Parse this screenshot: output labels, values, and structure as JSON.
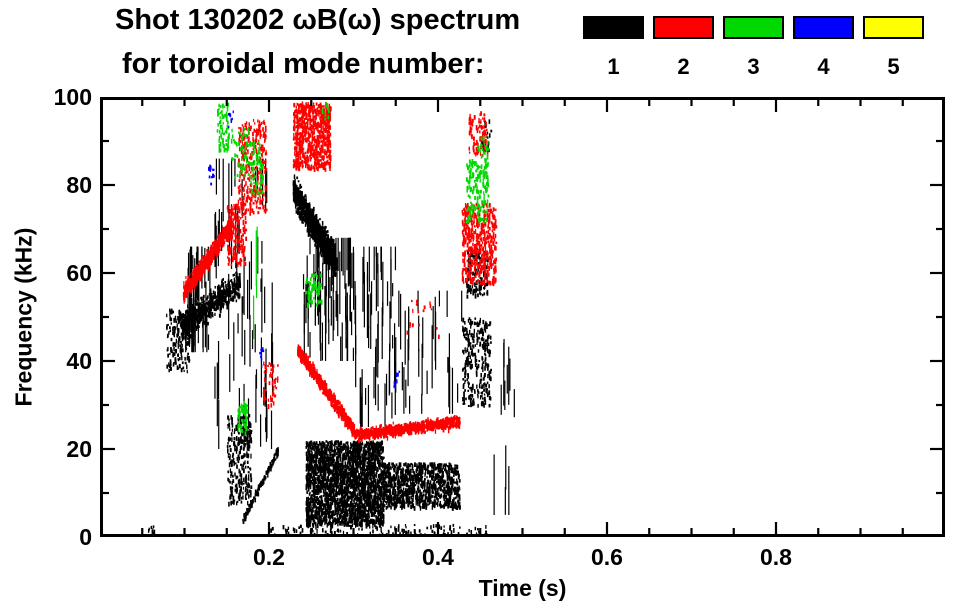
{
  "header": {
    "title": "Shot 130202 ωB(ω) spectrum",
    "subtitle": "for toroidal mode number:"
  },
  "legend": {
    "modes": [
      {
        "label": "1",
        "color": "#000000"
      },
      {
        "label": "2",
        "color": "#ff0000"
      },
      {
        "label": "3",
        "color": "#00d800"
      },
      {
        "label": "4",
        "color": "#0000ff"
      },
      {
        "label": "5",
        "color": "#ffff00"
      }
    ]
  },
  "chart_data": {
    "type": "scatter",
    "title": "Shot 130202 ωB(ω) spectrum for toroidal mode number",
    "xlabel": "Time (s)",
    "ylabel": "Frequency (kHz)",
    "xlim": [
      0,
      1.0
    ],
    "ylim": [
      0,
      100
    ],
    "xticks": [
      {
        "v": 0.2,
        "label": "0.2"
      },
      {
        "v": 0.4,
        "label": "0.4"
      },
      {
        "v": 0.6,
        "label": "0.6"
      },
      {
        "v": 0.8,
        "label": "0.8"
      }
    ],
    "yticks": [
      {
        "v": 0,
        "label": "0"
      },
      {
        "v": 20,
        "label": "20"
      },
      {
        "v": 40,
        "label": "40"
      },
      {
        "v": 60,
        "label": "60"
      },
      {
        "v": 80,
        "label": "80"
      },
      {
        "v": 100,
        "label": "100"
      }
    ],
    "x_minor_step": 0.05,
    "y_minor_step": 10,
    "grid": false,
    "legend_position": "top",
    "series": [
      {
        "name": "1",
        "color": "#000000",
        "clusters": [
          {
            "style": "dots",
            "t0": 0.055,
            "t1": 0.065,
            "f0": 0.5,
            "f1": 3,
            "n": 12
          },
          {
            "style": "dots",
            "t0": 0.078,
            "t1": 0.105,
            "f0": 38,
            "f1": 52,
            "n": 170
          },
          {
            "style": "band",
            "t0": 0.095,
            "t1": 0.165,
            "fa": 48,
            "fb": 58,
            "w": 4.5,
            "n": 560
          },
          {
            "style": "vstreaks",
            "t0": 0.1,
            "t1": 0.135,
            "f0": 42,
            "f1": 66,
            "n": 40
          },
          {
            "style": "vstreaks",
            "t0": 0.135,
            "t1": 0.205,
            "f0": 20,
            "f1": 86,
            "n": 70
          },
          {
            "style": "dots",
            "t0": 0.15,
            "t1": 0.178,
            "f0": 8,
            "f1": 28,
            "n": 280
          },
          {
            "style": "band",
            "t0": 0.168,
            "t1": 0.21,
            "fa": 4,
            "fb": 20,
            "w": 1.2,
            "n": 140
          },
          {
            "style": "band",
            "t0": 0.228,
            "t1": 0.278,
            "fa": 79,
            "fb": 63,
            "w": 5,
            "n": 1050
          },
          {
            "style": "vstreaks",
            "t0": 0.24,
            "t1": 0.3,
            "f0": 40,
            "f1": 68,
            "n": 80
          },
          {
            "style": "dots",
            "t0": 0.243,
            "t1": 0.335,
            "f0": 3,
            "f1": 22,
            "n": 2500
          },
          {
            "style": "dots",
            "t0": 0.335,
            "t1": 0.425,
            "f0": 7,
            "f1": 17,
            "n": 1000
          },
          {
            "style": "vstreaks",
            "t0": 0.3,
            "t1": 0.35,
            "f0": 25,
            "f1": 66,
            "n": 55
          },
          {
            "style": "vstreaks",
            "t0": 0.352,
            "t1": 0.43,
            "f0": 28,
            "f1": 56,
            "n": 30
          },
          {
            "style": "dots",
            "t0": 0.428,
            "t1": 0.462,
            "f0": 30,
            "f1": 50,
            "n": 290
          },
          {
            "style": "dots",
            "t0": 0.433,
            "t1": 0.458,
            "f0": 55,
            "f1": 66,
            "n": 150
          },
          {
            "style": "dots",
            "t0": 0.45,
            "t1": 0.462,
            "f0": 88,
            "f1": 95,
            "n": 25
          },
          {
            "style": "dots",
            "t0": 0.2,
            "t1": 0.46,
            "f0": 0.5,
            "f1": 3,
            "n": 130
          },
          {
            "style": "vstreaks",
            "t0": 0.465,
            "t1": 0.49,
            "f0": 5,
            "f1": 45,
            "n": 12
          }
        ]
      },
      {
        "name": "2",
        "color": "#ff0000",
        "clusters": [
          {
            "style": "band",
            "t0": 0.098,
            "t1": 0.155,
            "fa": 56,
            "fb": 71,
            "w": 3,
            "n": 620
          },
          {
            "style": "dots",
            "t0": 0.15,
            "t1": 0.172,
            "f0": 62,
            "f1": 76,
            "n": 170
          },
          {
            "style": "dots",
            "t0": 0.163,
            "t1": 0.196,
            "f0": 74,
            "f1": 95,
            "n": 320
          },
          {
            "style": "dots",
            "t0": 0.192,
            "t1": 0.21,
            "f0": 30,
            "f1": 40,
            "n": 50
          },
          {
            "style": "dots",
            "t0": 0.228,
            "t1": 0.272,
            "f0": 84,
            "f1": 99,
            "n": 750
          },
          {
            "style": "band",
            "t0": 0.233,
            "t1": 0.3,
            "fa": 43,
            "fb": 24.5,
            "w": 2.2,
            "n": 640
          },
          {
            "style": "band",
            "t0": 0.3,
            "t1": 0.425,
            "fa": 23.5,
            "fb": 26.5,
            "w": 1.8,
            "n": 850
          },
          {
            "style": "dots",
            "t0": 0.362,
            "t1": 0.402,
            "f0": 46,
            "f1": 54,
            "n": 18
          },
          {
            "style": "dots",
            "t0": 0.428,
            "t1": 0.468,
            "f0": 58,
            "f1": 76,
            "n": 520
          },
          {
            "style": "dots",
            "t0": 0.436,
            "t1": 0.458,
            "f0": 87,
            "f1": 97,
            "n": 90
          }
        ]
      },
      {
        "name": "3",
        "color": "#00d800",
        "clusters": [
          {
            "style": "dots",
            "t0": 0.138,
            "t1": 0.152,
            "f0": 88,
            "f1": 99,
            "n": 70
          },
          {
            "style": "dots",
            "t0": 0.155,
            "t1": 0.176,
            "f0": 82,
            "f1": 93,
            "n": 60
          },
          {
            "style": "dots",
            "t0": 0.162,
            "t1": 0.174,
            "f0": 24,
            "f1": 31,
            "n": 65
          },
          {
            "style": "dots",
            "t0": 0.176,
            "t1": 0.192,
            "f0": 78,
            "f1": 90,
            "n": 70
          },
          {
            "style": "vstreaks",
            "t0": 0.178,
            "t1": 0.186,
            "f0": 45,
            "f1": 75,
            "n": 4
          },
          {
            "style": "dots",
            "t0": 0.243,
            "t1": 0.262,
            "f0": 53,
            "f1": 60,
            "n": 75
          },
          {
            "style": "dots",
            "t0": 0.262,
            "t1": 0.27,
            "f0": 95,
            "f1": 99,
            "n": 12
          },
          {
            "style": "dots",
            "t0": 0.433,
            "t1": 0.459,
            "f0": 72,
            "f1": 86,
            "n": 170
          },
          {
            "style": "dots",
            "t0": 0.447,
            "t1": 0.459,
            "f0": 86,
            "f1": 92,
            "n": 25
          }
        ]
      },
      {
        "name": "4",
        "color": "#0000ff",
        "clusters": [
          {
            "style": "dots",
            "t0": 0.127,
            "t1": 0.134,
            "f0": 80,
            "f1": 85,
            "n": 12
          },
          {
            "style": "dots",
            "t0": 0.151,
            "t1": 0.157,
            "f0": 93,
            "f1": 97,
            "n": 8
          },
          {
            "style": "dots",
            "t0": 0.187,
            "t1": 0.193,
            "f0": 39,
            "f1": 44,
            "n": 10
          },
          {
            "style": "dots",
            "t0": 0.347,
            "t1": 0.354,
            "f0": 34,
            "f1": 38,
            "n": 8
          }
        ]
      },
      {
        "name": "5",
        "color": "#ffff00",
        "clusters": []
      }
    ]
  }
}
